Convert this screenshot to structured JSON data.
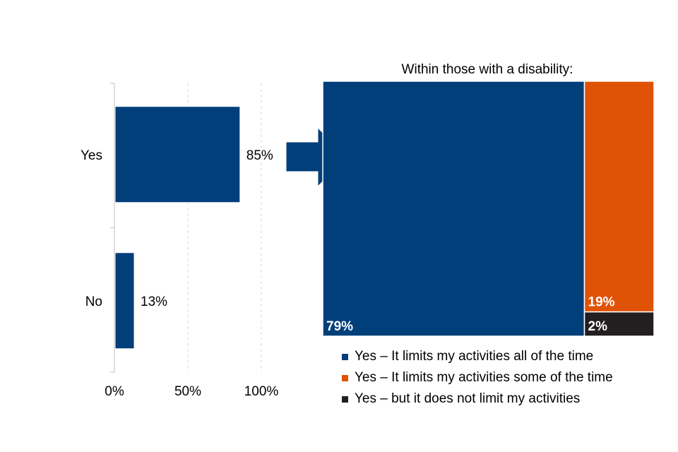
{
  "chart_data": [
    {
      "type": "bar",
      "orientation": "horizontal",
      "categories": [
        "Yes",
        "No"
      ],
      "values": [
        85,
        13
      ],
      "data_labels": [
        "85%",
        "13%"
      ],
      "x_ticks": [
        "0%",
        "50%",
        "100%"
      ],
      "xlim": [
        0,
        100
      ],
      "grid": "vertical dashed",
      "color": "#003f7a"
    },
    {
      "type": "treemap",
      "title": "Within those with a disability:",
      "segments": [
        {
          "name": "Yes – It limits my activities all of the time",
          "value": 79,
          "label": "79%",
          "color": "#003f7a"
        },
        {
          "name": "Yes – It limits my activities some of the time",
          "value": 19,
          "label": "19%",
          "color": "#e05206"
        },
        {
          "name": "Yes – but it does not limit my activities",
          "value": 2,
          "label": "2%",
          "color": "#231f20"
        }
      ],
      "legend_position": "bottom"
    }
  ],
  "legend": {
    "items": [
      {
        "label": "Yes – It limits my activities all of the time",
        "color": "#003f7a"
      },
      {
        "label": "Yes – It limits my activities some of the time",
        "color": "#e05206"
      },
      {
        "label": "Yes – but it does not limit my activities",
        "color": "#231f20"
      }
    ]
  },
  "arrow": {
    "icon": "right-arrow-icon",
    "color": "#003f7a"
  }
}
